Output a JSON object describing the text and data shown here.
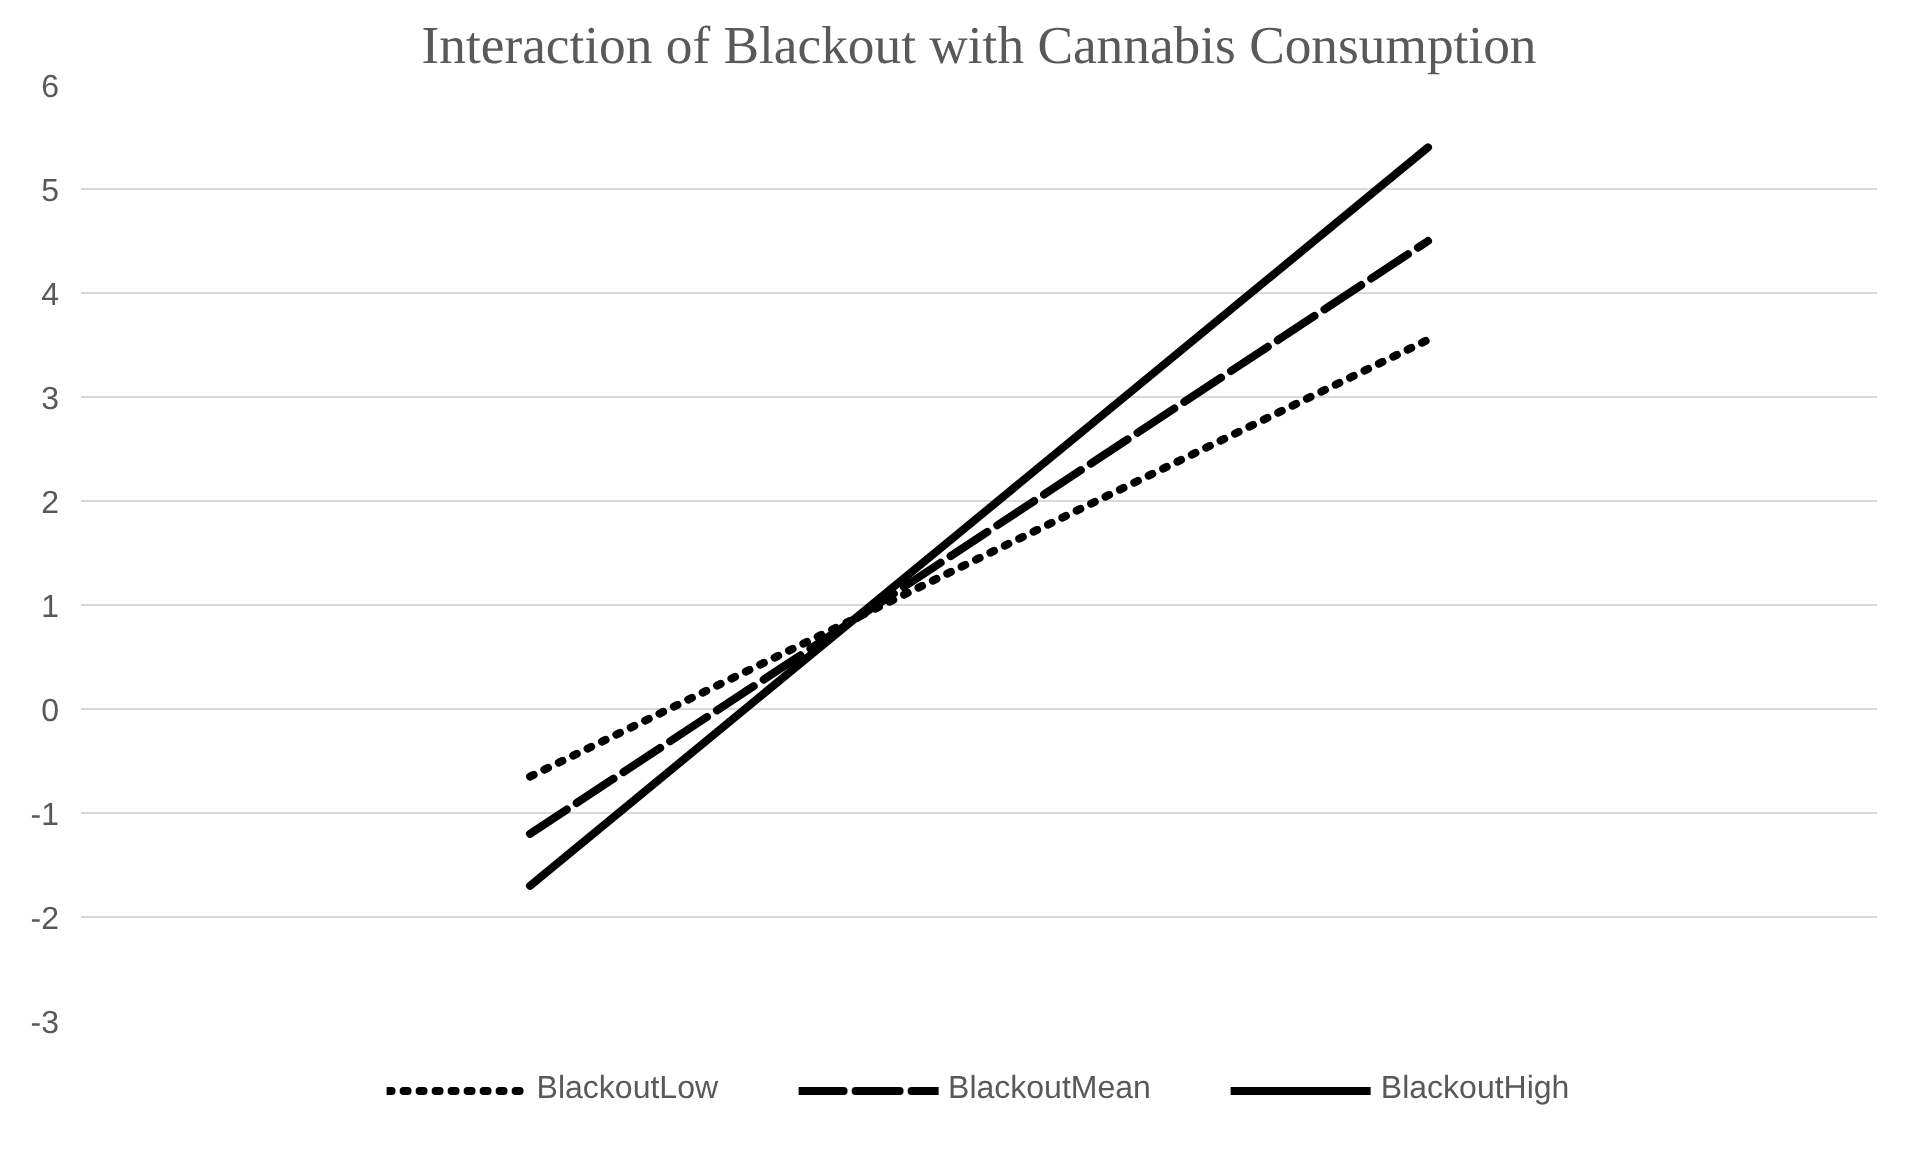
{
  "chart_data": {
    "type": "line",
    "title": "Interaction of Blackout with Cannabis Consumption",
    "categories": [
      null,
      null
    ],
    "series": [
      {
        "name": "BlackoutLow",
        "color": "#000000",
        "line_style": "dotted",
        "values": [
          -0.65,
          3.55
        ]
      },
      {
        "name": "BlackoutMean",
        "color": "#000000",
        "line_style": "dashed",
        "values": [
          -1.2,
          4.5
        ]
      },
      {
        "name": "BlackoutHigh",
        "color": "#000000",
        "line_style": "solid",
        "values": [
          -1.7,
          5.4
        ]
      }
    ],
    "ylim": [
      -3,
      6
    ],
    "yticks": [
      -3,
      -2,
      -1,
      0,
      1,
      2,
      3,
      4,
      5,
      6
    ],
    "grid": "y",
    "legend": "bottom",
    "marker": "none"
  }
}
